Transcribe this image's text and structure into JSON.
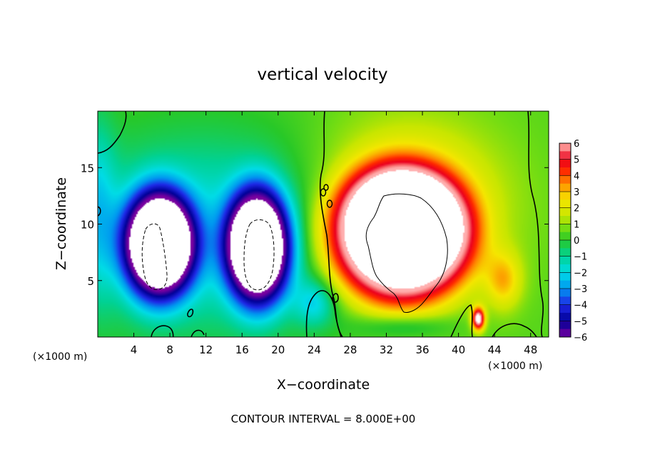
{
  "chart_data": {
    "type": "heatmap",
    "title": "vertical velocity",
    "xlabel": "X−coordinate",
    "ylabel": "Z−coordinate",
    "x_unit_left": "(×1000 m)",
    "x_unit_right": "(×1000 m)",
    "xlim": [
      0,
      50
    ],
    "ylim": [
      0,
      20
    ],
    "xticks": [
      4,
      8,
      12,
      16,
      20,
      24,
      28,
      32,
      36,
      40,
      44,
      48
    ],
    "yticks": [
      5,
      10,
      15
    ],
    "colorbar": {
      "min": -6,
      "max": 6,
      "ticks": [
        6,
        5,
        4,
        3,
        2,
        1,
        0,
        -1,
        -2,
        -3,
        -4,
        -5,
        -6
      ],
      "tick_labels": [
        "6",
        "5",
        "4",
        "3",
        "2",
        "1",
        "0",
        "−1",
        "−2",
        "−3",
        "−4",
        "−5",
        "−6"
      ]
    },
    "features": [
      {
        "name": "downdraft",
        "x": 6.5,
        "z": 8.5,
        "peak": -8
      },
      {
        "name": "downdraft",
        "x": 18.0,
        "z": 8.0,
        "peak": -8
      },
      {
        "name": "updraft",
        "x": 33.5,
        "z": 9.0,
        "peak": 8
      },
      {
        "name": "updraft",
        "x": 42.0,
        "z": 1.5,
        "peak": 6
      }
    ],
    "contour_interval_text": "CONTOUR INTERVAL = 8.000E+00"
  }
}
